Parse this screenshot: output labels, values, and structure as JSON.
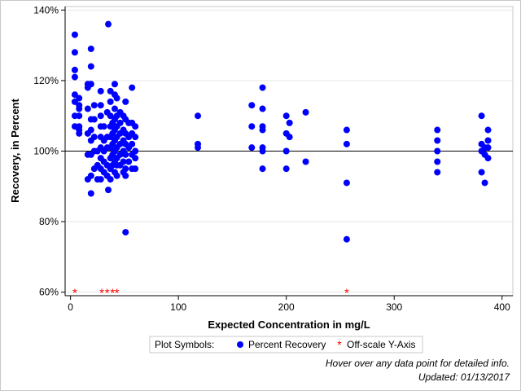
{
  "chart_data": {
    "type": "scatter",
    "title": "",
    "xlabel": "Expected Concentration in mg/L",
    "ylabel": "Recovery, in Percent",
    "xlim": [
      -5,
      410
    ],
    "ylim": [
      59,
      141
    ],
    "x_ticks": [
      0,
      100,
      200,
      300,
      400
    ],
    "y_ticks": [
      60,
      80,
      100,
      120,
      140
    ],
    "y_tick_labels": [
      "60%",
      "80%",
      "100%",
      "120%",
      "140%"
    ],
    "x_tick_labels": [
      "0",
      "100",
      "200",
      "300",
      "400"
    ],
    "reference_line_y": 100,
    "grid": "horizontal",
    "colors": {
      "recovery": "#0000ff",
      "offscale": "#ff0000",
      "refline": "#000000",
      "grid": "#e6e6e6"
    },
    "series": [
      {
        "name": "Percent Recovery",
        "marker": "dot",
        "points": [
          [
            4,
            133
          ],
          [
            4,
            128
          ],
          [
            4,
            123
          ],
          [
            4,
            121
          ],
          [
            4,
            116
          ],
          [
            4,
            114
          ],
          [
            4,
            110
          ],
          [
            4,
            107
          ],
          [
            8,
            115
          ],
          [
            8,
            113
          ],
          [
            8,
            112
          ],
          [
            8,
            110
          ],
          [
            8,
            107
          ],
          [
            8,
            106
          ],
          [
            8,
            105
          ],
          [
            16,
            119
          ],
          [
            16,
            118
          ],
          [
            16,
            112
          ],
          [
            16,
            105
          ],
          [
            16,
            99
          ],
          [
            16,
            92
          ],
          [
            19,
            129
          ],
          [
            19,
            124
          ],
          [
            19,
            119
          ],
          [
            19,
            109
          ],
          [
            19,
            106
          ],
          [
            19,
            103
          ],
          [
            19,
            99
          ],
          [
            19,
            93
          ],
          [
            19,
            88
          ],
          [
            22,
            113
          ],
          [
            22,
            109
          ],
          [
            22,
            104
          ],
          [
            22,
            100
          ],
          [
            22,
            95
          ],
          [
            25,
            100
          ],
          [
            25,
            96
          ],
          [
            25,
            92
          ],
          [
            28,
            117
          ],
          [
            28,
            113
          ],
          [
            28,
            110
          ],
          [
            28,
            107
          ],
          [
            28,
            104
          ],
          [
            28,
            101
          ],
          [
            28,
            98
          ],
          [
            28,
            95
          ],
          [
            28,
            92
          ],
          [
            31,
            107
          ],
          [
            31,
            103
          ],
          [
            31,
            100
          ],
          [
            31,
            97
          ],
          [
            31,
            94
          ],
          [
            34,
            111
          ],
          [
            34,
            104
          ],
          [
            34,
            101
          ],
          [
            34,
            96
          ],
          [
            34,
            93
          ],
          [
            35,
            136
          ],
          [
            35,
            89
          ],
          [
            37,
            117
          ],
          [
            37,
            114
          ],
          [
            37,
            110
          ],
          [
            37,
            107
          ],
          [
            37,
            104
          ],
          [
            37,
            101
          ],
          [
            37,
            98
          ],
          [
            37,
            95
          ],
          [
            37,
            92
          ],
          [
            39,
            108
          ],
          [
            39,
            105
          ],
          [
            39,
            102
          ],
          [
            39,
            99
          ],
          [
            39,
            96
          ],
          [
            41,
            119
          ],
          [
            41,
            116
          ],
          [
            41,
            112
          ],
          [
            41,
            109
          ],
          [
            41,
            106
          ],
          [
            41,
            103
          ],
          [
            41,
            100
          ],
          [
            41,
            97
          ],
          [
            41,
            94
          ],
          [
            43,
            115
          ],
          [
            43,
            110
          ],
          [
            43,
            107
          ],
          [
            43,
            104
          ],
          [
            43,
            101
          ],
          [
            43,
            98
          ],
          [
            43,
            96
          ],
          [
            43,
            93
          ],
          [
            46,
            111
          ],
          [
            46,
            108
          ],
          [
            46,
            105
          ],
          [
            46,
            102
          ],
          [
            46,
            99
          ],
          [
            46,
            96
          ],
          [
            49,
            110
          ],
          [
            49,
            106
          ],
          [
            49,
            103
          ],
          [
            49,
            100
          ],
          [
            49,
            97
          ],
          [
            49,
            94
          ],
          [
            51,
            114
          ],
          [
            51,
            109
          ],
          [
            51,
            105
          ],
          [
            51,
            102
          ],
          [
            51,
            99
          ],
          [
            51,
            95
          ],
          [
            51,
            93
          ],
          [
            51,
            77
          ],
          [
            54,
            108
          ],
          [
            54,
            104
          ],
          [
            54,
            101
          ],
          [
            54,
            97
          ],
          [
            57,
            118
          ],
          [
            57,
            108
          ],
          [
            57,
            105
          ],
          [
            57,
            102
          ],
          [
            57,
            99
          ],
          [
            57,
            95
          ],
          [
            60,
            107
          ],
          [
            60,
            104
          ],
          [
            60,
            100
          ],
          [
            60,
            98
          ],
          [
            60,
            95
          ],
          [
            118,
            110
          ],
          [
            118,
            102
          ],
          [
            118,
            101
          ],
          [
            168,
            113
          ],
          [
            168,
            107
          ],
          [
            168,
            101
          ],
          [
            178,
            118
          ],
          [
            178,
            112
          ],
          [
            178,
            107
          ],
          [
            178,
            106
          ],
          [
            178,
            101
          ],
          [
            178,
            100
          ],
          [
            178,
            95
          ],
          [
            200,
            110
          ],
          [
            200,
            105
          ],
          [
            200,
            100
          ],
          [
            200,
            95
          ],
          [
            203,
            108
          ],
          [
            203,
            104
          ],
          [
            218,
            111
          ],
          [
            218,
            97
          ],
          [
            256,
            106
          ],
          [
            256,
            102
          ],
          [
            256,
            91
          ],
          [
            256,
            75
          ],
          [
            340,
            106
          ],
          [
            340,
            103
          ],
          [
            340,
            100
          ],
          [
            340,
            97
          ],
          [
            340,
            94
          ],
          [
            381,
            110
          ],
          [
            381,
            102
          ],
          [
            381,
            100
          ],
          [
            381,
            94
          ],
          [
            384,
            101
          ],
          [
            384,
            99
          ],
          [
            384,
            91
          ],
          [
            387,
            106
          ],
          [
            387,
            103
          ],
          [
            387,
            101
          ],
          [
            387,
            98
          ]
        ]
      },
      {
        "name": "Off-scale Y-Axis",
        "marker": "asterisk",
        "points": [
          [
            4,
            60
          ],
          [
            29,
            60
          ],
          [
            34,
            60
          ],
          [
            39,
            60
          ],
          [
            43,
            60
          ],
          [
            256,
            60
          ]
        ]
      }
    ],
    "legend": {
      "title": "Plot Symbols:",
      "items": [
        "Percent Recovery",
        "Off-scale Y-Axis"
      ],
      "placement": "bottom"
    }
  },
  "notes": {
    "hover": "Hover over any data point for detailed info.",
    "updated": "Updated: 01/13/2017"
  }
}
